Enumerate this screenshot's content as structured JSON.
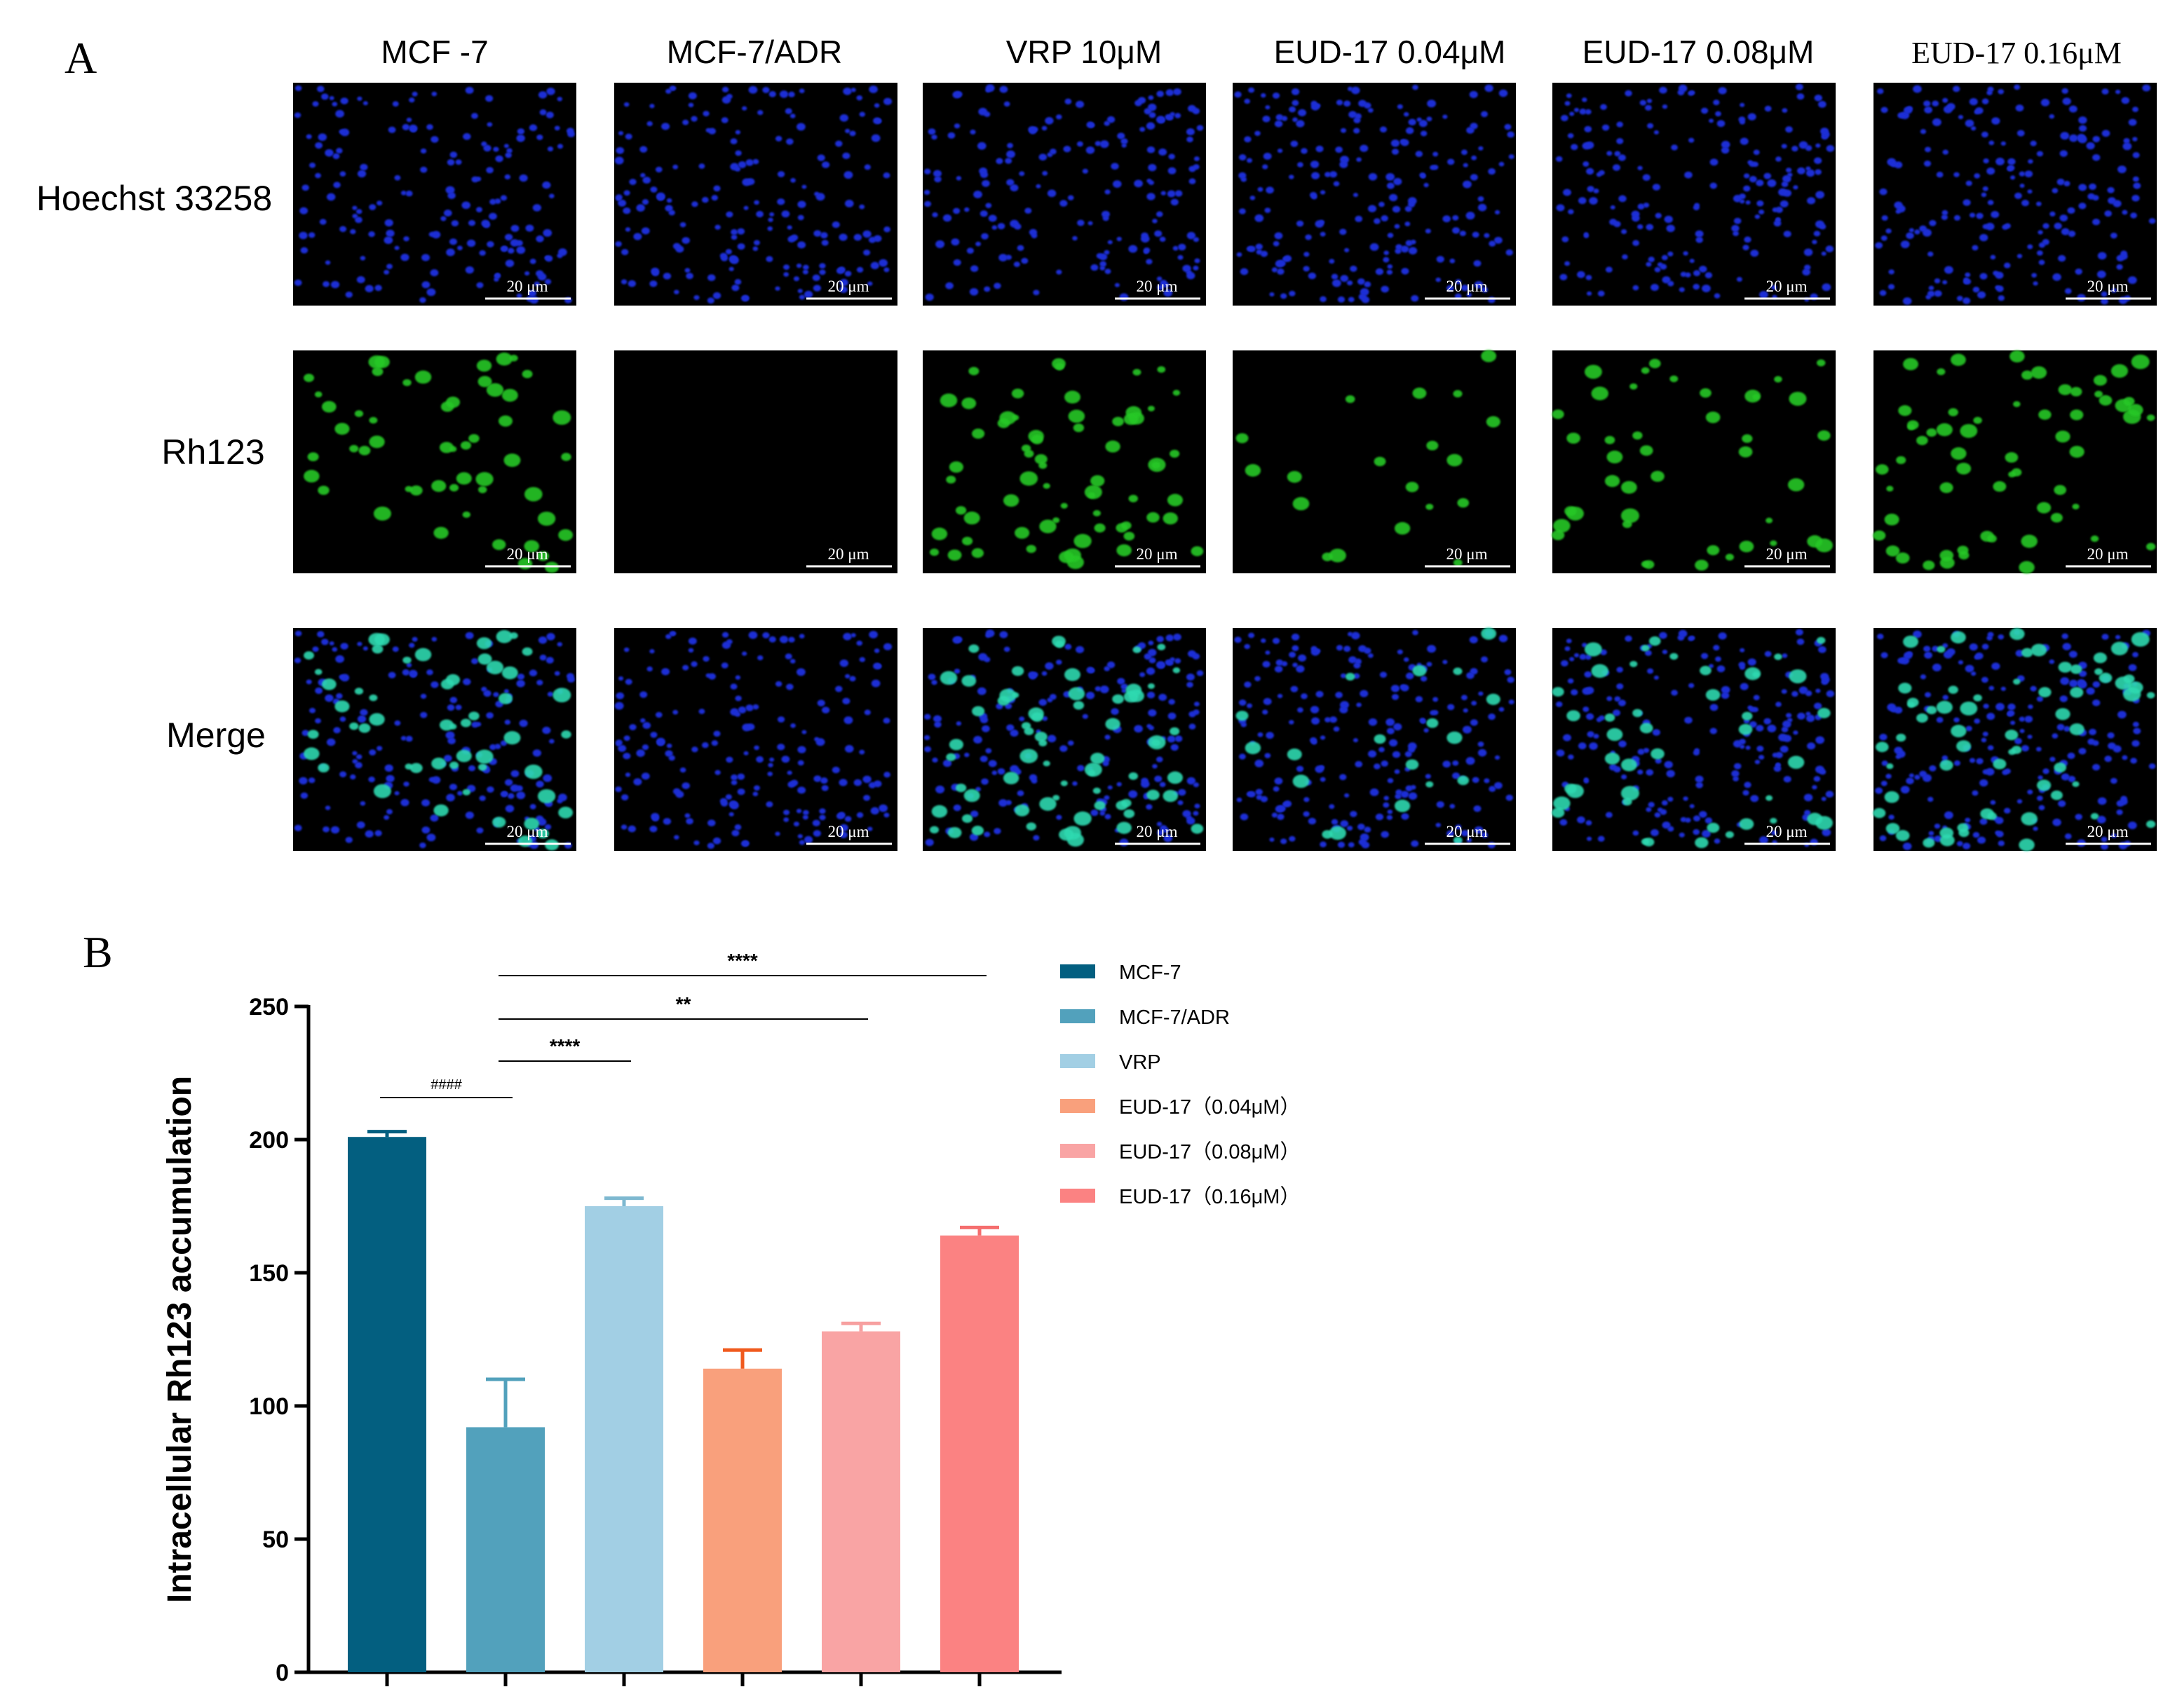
{
  "panel_a": {
    "letter": "A",
    "columns": [
      "MCF -7",
      "MCF-7/ADR",
      "VRP 10μM",
      "EUD-17 0.04μM",
      "EUD-17 0.08μM",
      "EUD-17 0.16μM"
    ],
    "rows": [
      "Hoechst 33258",
      "Rh123",
      "Merge"
    ],
    "scale_bar_label": "20 μm",
    "colors": {
      "nuclei": "#1a2fd6",
      "rh123": "#28c828",
      "merge_cells": "#2fd9b0",
      "background": "#000000"
    },
    "rh123_level": [
      0.55,
      0.0,
      0.7,
      0.2,
      0.45,
      0.65
    ]
  },
  "panel_b": {
    "letter": "B",
    "significance": [
      {
        "label": "####",
        "from": 0,
        "to": 1
      },
      {
        "label": "****",
        "from": 1,
        "to": 2
      },
      {
        "label": "**",
        "from": 1,
        "to": 4
      },
      {
        "label": "****",
        "from": 1,
        "to": 5
      }
    ]
  },
  "chart_data": {
    "type": "bar",
    "categories": [
      "MCF-7",
      "MCF-7/ADR",
      "VRP",
      "EUD-17（0.04μM）",
      "EUD-17（0.08μM）",
      "EUD-17（0.16μM）"
    ],
    "values": [
      201,
      92,
      175,
      114,
      128,
      164
    ],
    "errors": [
      2,
      18,
      3,
      7,
      3,
      3
    ],
    "colors": [
      "#035f80",
      "#52a1bc",
      "#a2cfe4",
      "#f9a07c",
      "#f9a4a4",
      "#fb8282"
    ],
    "error_colors": [
      "#035f80",
      "#52a1bc",
      "#7eb8d0",
      "#f05a1e",
      "#f7a0a0",
      "#f56e6e"
    ],
    "ylabel": "Intracellular Rh123 accumulation",
    "xlabel": "",
    "ylim": [
      0,
      250
    ],
    "yticks": [
      0,
      50,
      100,
      150,
      200,
      250
    ],
    "legend": [
      "MCF-7",
      "MCF-7/ADR",
      "VRP",
      "EUD-17（0.04μM）",
      "EUD-17（0.08μM）",
      "EUD-17（0.16μM）"
    ],
    "legend_position": "right",
    "grid": false
  }
}
